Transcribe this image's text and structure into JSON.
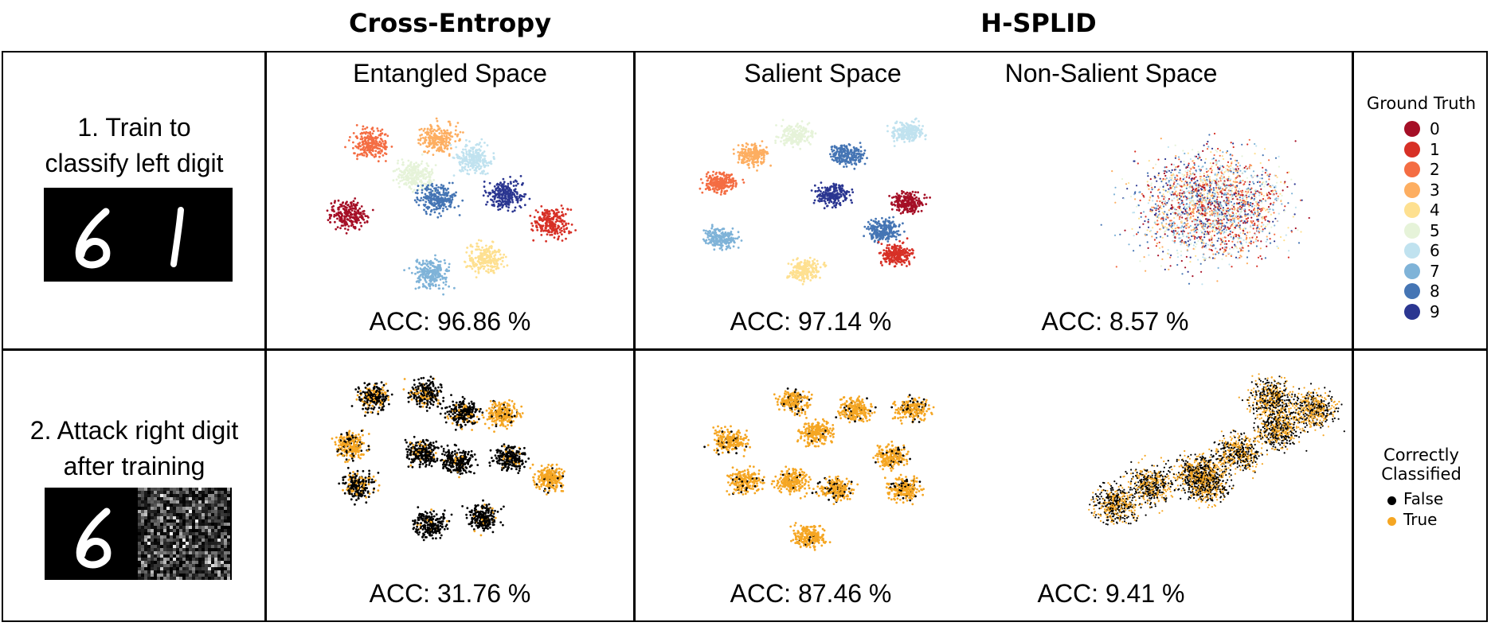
{
  "headers": {
    "cross_entropy": "Cross-Entropy",
    "hsplid": "H-SPLID"
  },
  "rows": [
    {
      "label_line1": "1. Train to",
      "label_line2": "classify left digit"
    },
    {
      "label_line1": "2. Attack right digit",
      "label_line2": "after training"
    }
  ],
  "columns": [
    "Entangled Space",
    "Salient Space",
    "Non-Salient Space"
  ],
  "accuracies": {
    "row1": [
      "ACC: 96.86 %",
      "ACC: 97.14 %",
      "ACC: 8.57 %"
    ],
    "row2": [
      "ACC: 31.76 %",
      "ACC: 87.46 %",
      "ACC: 9.41 %"
    ]
  },
  "legend_ground_truth": {
    "title": "Ground Truth",
    "items": [
      {
        "label": "0",
        "color": "#a50f26"
      },
      {
        "label": "1",
        "color": "#d73026"
      },
      {
        "label": "2",
        "color": "#f46d43"
      },
      {
        "label": "3",
        "color": "#fdae61"
      },
      {
        "label": "4",
        "color": "#fee090"
      },
      {
        "label": "5",
        "color": "#e6f3d9"
      },
      {
        "label": "6",
        "color": "#c0e2ef"
      },
      {
        "label": "7",
        "color": "#7fb3d8"
      },
      {
        "label": "8",
        "color": "#4575b4"
      },
      {
        "label": "9",
        "color": "#2b3691"
      }
    ]
  },
  "legend_correct": {
    "title_line1": "Correctly",
    "title_line2": "Classified",
    "items": [
      {
        "label": "False",
        "color": "#000000"
      },
      {
        "label": "True",
        "color": "#f5a623"
      }
    ]
  },
  "digit_images": {
    "row1": [
      "6",
      "1"
    ],
    "row2": [
      "6",
      "noise"
    ]
  }
}
